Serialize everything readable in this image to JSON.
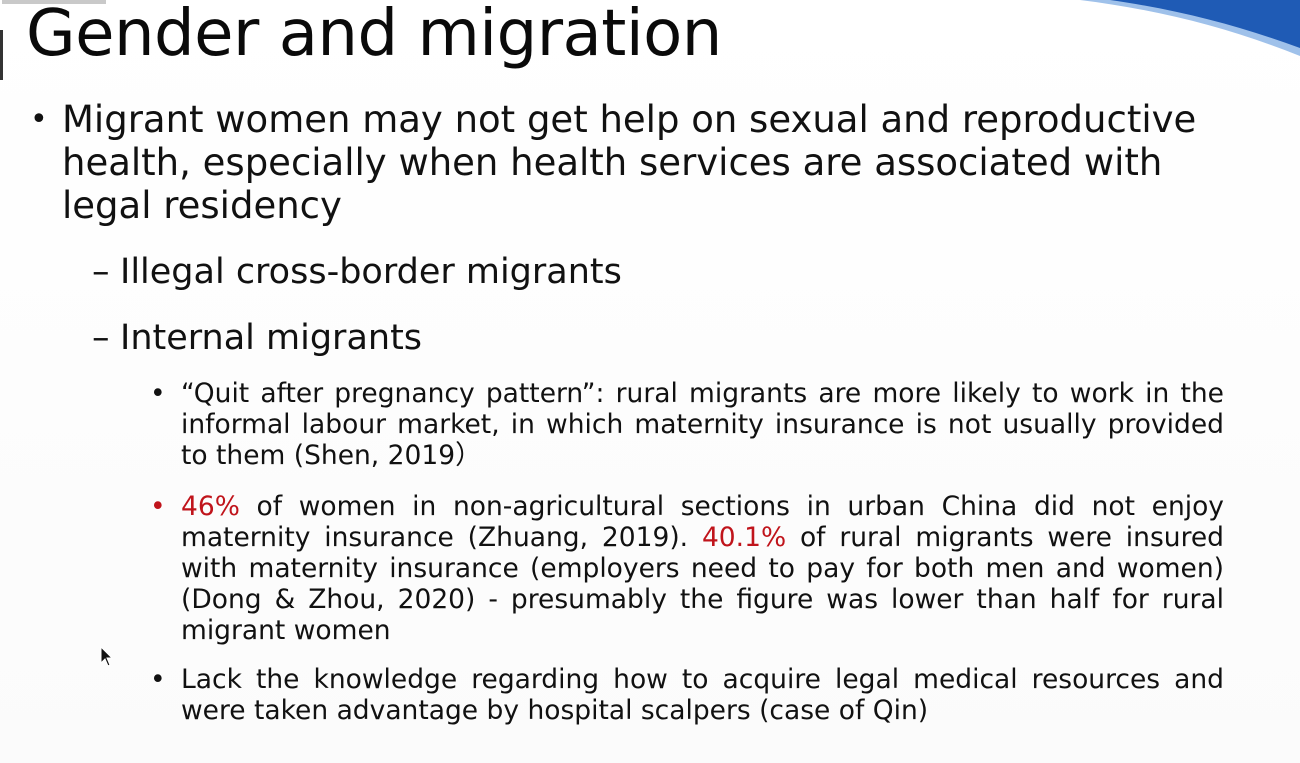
{
  "slide": {
    "title": "Gender and migration",
    "main_bullet": "Migrant women may not get help on sexual and reproductive health, especially when health services are associated with legal residency",
    "sub_bullets": [
      "Illegal cross-border migrants",
      "Internal migrants"
    ],
    "details": {
      "quit_after_pregnancy": "“Quit after pregnancy pattern”: rural migrants are more likely to work in the informal labour market, in which maternity insurance is not usually provided to them (Shen, 2019）",
      "insurance_stat_1_value": "46%",
      "insurance_stat_1_text": " of women in non-agricultural sections in urban China did not enjoy maternity insurance (Zhuang, 2019). ",
      "insurance_stat_2_value": "40.1%",
      "insurance_stat_2_text": " of rural migrants were insured with maternity insurance (employers need to pay for both men and women) (Dong & Zhou, 2020) - presumably the figure was lower than half for rural migrant women",
      "lack_knowledge": "Lack the knowledge regarding how to acquire legal medical resources and were taken advantage by hospital scalpers (case of Qin)"
    },
    "bullet_char": "•",
    "dash_char": "–"
  },
  "colors": {
    "highlight": "#c0141b",
    "swoosh_blue": "#1f5bb5"
  },
  "icons": {
    "cursor": "mouse-pointer-icon",
    "corner": "blue-swoosh-decoration"
  }
}
